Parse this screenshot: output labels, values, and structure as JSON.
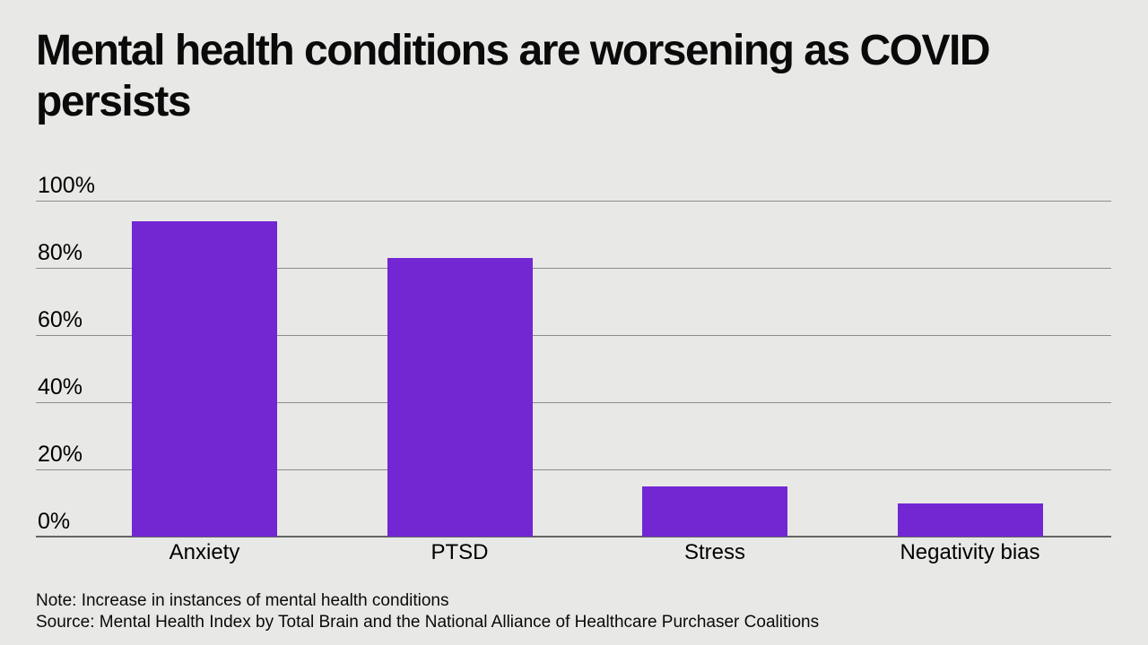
{
  "header": {
    "title_lines": [
      "Mental health conditions are worsening as COVID",
      "persists"
    ]
  },
  "chart_data": {
    "type": "bar",
    "title": "Mental health conditions are worsening as COVID persists",
    "categories": [
      "Anxiety",
      "PTSD",
      "Stress",
      "Negativity bias"
    ],
    "values": [
      94,
      83,
      15,
      10
    ],
    "xlabel": "",
    "ylabel": "",
    "ylim": [
      0,
      100
    ],
    "yticks": [
      {
        "value": 100,
        "label": "100%"
      },
      {
        "value": 80,
        "label": "80%"
      },
      {
        "value": 60,
        "label": "60%"
      },
      {
        "value": 40,
        "label": "40%"
      },
      {
        "value": 20,
        "label": "20%"
      },
      {
        "value": 0,
        "label": "0%"
      }
    ],
    "grid": true,
    "legend": false,
    "bar_color": "#7227d3"
  },
  "footer": {
    "note": "Note: Increase in instances of mental health conditions",
    "source": "Source: Mental Health Index by Total Brain and the National Alliance of Healthcare Purchaser Coalitions"
  },
  "colors": {
    "background": "#e8e8e6",
    "bar": "#7227d3",
    "gridline": "#8c8c8c",
    "baseline": "#646464",
    "text": "#0a0a0a"
  }
}
